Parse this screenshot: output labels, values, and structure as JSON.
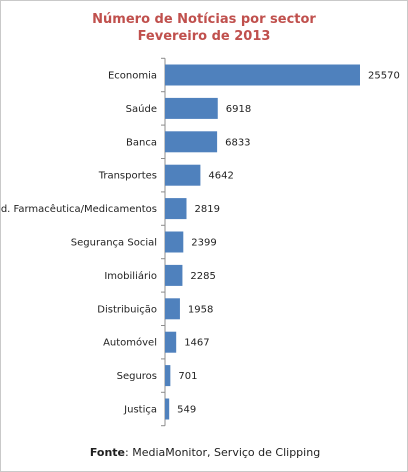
{
  "chart_data": {
    "type": "bar",
    "orientation": "horizontal",
    "title": [
      "Número de Notícias por sector",
      "Fevereiro de 2013"
    ],
    "categories": [
      "Economia",
      "Saúde",
      "Banca",
      "Transportes",
      "Ind. Farmacêutica/Medicamentos",
      "Segurança Social",
      "Imobiliário",
      "Distribuição",
      "Automóvel",
      "Seguros",
      "Justiça"
    ],
    "values": [
      25570,
      6918,
      6833,
      4642,
      2819,
      2399,
      2285,
      1958,
      1467,
      701,
      549
    ],
    "data_labels": [
      "25570",
      "6918",
      "6833",
      "4642",
      "2819",
      "2399",
      "2285",
      "1958",
      "1467",
      "701",
      "549"
    ],
    "xlim": [
      0,
      25570
    ],
    "grid": false,
    "legend": "none",
    "colors": {
      "bar": "#4f81bd",
      "title": "#c0504d"
    }
  },
  "footer": {
    "label": "Fonte",
    "text": ": MediaMonitor, Serviço de Clipping"
  }
}
